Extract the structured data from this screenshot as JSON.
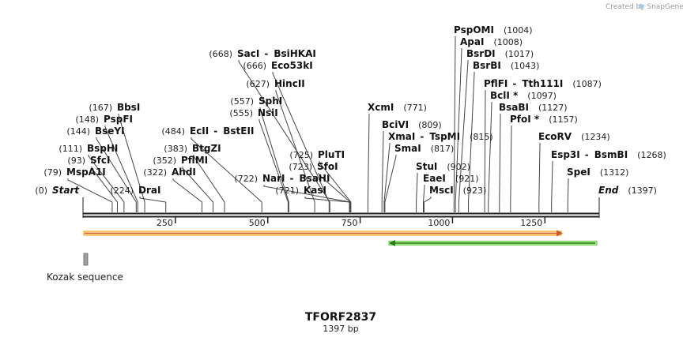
{
  "credit": "Created by SnapGene",
  "title": "TFORF2837",
  "subtitle": "1397 bp",
  "length": 1397,
  "colors": {
    "orf": "#f5a623",
    "orf_fill": "#ffe6b3",
    "arrow_line": "#cc5a2e",
    "green": "#a5e88a",
    "green_line": "#2a7a1a",
    "kozak": "#a0a0a0"
  },
  "ticks": [
    {
      "value": 250,
      "label": "250"
    },
    {
      "value": 500,
      "label": "500"
    },
    {
      "value": 750,
      "label": "750"
    },
    {
      "value": 1000,
      "label": "1000"
    },
    {
      "value": 1250,
      "label": "1250"
    }
  ],
  "features": [
    {
      "name": "orf",
      "start": 0,
      "end": 1397,
      "direction": "forward",
      "color": "#ffe6b3",
      "label": ""
    },
    {
      "name": "green-feature",
      "start": 840,
      "end": 1397,
      "direction": "reverse",
      "color": "#a5e88a",
      "label": ""
    },
    {
      "name": "kozak",
      "start": 0,
      "end": 10,
      "label": "Kozak sequence"
    }
  ],
  "sites": [
    {
      "id": "start",
      "pos": "(0)",
      "name": "Start",
      "italic": true,
      "loc": 0
    },
    {
      "id": "mspa1i",
      "pos": "(79)",
      "name": "MspA1I",
      "loc": 79
    },
    {
      "id": "sfci",
      "pos": "(93)",
      "name": "SfcI",
      "loc": 93
    },
    {
      "id": "bsphi",
      "pos": "(111)",
      "name": "BspHI",
      "loc": 111
    },
    {
      "id": "bseyi",
      "pos": "(144)",
      "name": "BseYI",
      "loc": 144
    },
    {
      "id": "pspfi",
      "pos": "(148)",
      "name": "PspFI",
      "loc": 148
    },
    {
      "id": "bbsi",
      "pos": "(167)",
      "name": "BbsI",
      "loc": 167
    },
    {
      "id": "drai",
      "pos": "(224)",
      "name": "DraI",
      "loc": 224,
      "label_right": true
    },
    {
      "id": "ahdi",
      "pos": "(322)",
      "name": "AhdI",
      "loc": 322
    },
    {
      "id": "pflmi",
      "pos": "(352)",
      "name": "PflMI",
      "loc": 352
    },
    {
      "id": "btgzi",
      "pos": "(383)",
      "name": "BtgZI",
      "loc": 383
    },
    {
      "id": "ecli",
      "pos": "(484)",
      "name": "EcII",
      "name2": "BstEII",
      "loc": 484
    },
    {
      "id": "nsii",
      "pos": "(555)",
      "name": "NsiI",
      "loc": 555
    },
    {
      "id": "sphi",
      "pos": "(557)",
      "name": "SphI",
      "loc": 557
    },
    {
      "id": "hincii",
      "pos": "(627)",
      "name": "HincII",
      "loc": 627
    },
    {
      "id": "eco53ki",
      "pos": "(666)",
      "name": "Eco53kI",
      "loc": 666
    },
    {
      "id": "saci",
      "pos": "(668)",
      "name": "SacI",
      "name2": "BsiHKAI",
      "loc": 668
    },
    {
      "id": "kasi",
      "pos": "(721)",
      "name": "KasI",
      "loc": 721
    },
    {
      "id": "nari",
      "pos": "(722)",
      "name": "NarI",
      "name2": "BsaHI",
      "loc": 722
    },
    {
      "id": "sfoi",
      "pos": "(723)",
      "name": "SfoI",
      "loc": 723
    },
    {
      "id": "pluti",
      "pos": "(725)",
      "name": "PluTI",
      "loc": 725
    },
    {
      "id": "xcmi",
      "pos": "(771)",
      "name": "XcmI",
      "loc": 771
    },
    {
      "id": "bcivi",
      "pos": "(809)",
      "name": "BciVI",
      "loc": 809
    },
    {
      "id": "xmai",
      "pos": "(815)",
      "name": "XmaI",
      "name2": "TspMI",
      "loc": 815
    },
    {
      "id": "smai",
      "pos": "(817)",
      "name": "SmaI",
      "loc": 817
    },
    {
      "id": "stui",
      "pos": "(902)",
      "name": "StuI",
      "loc": 902
    },
    {
      "id": "eaei",
      "pos": "(921)",
      "name": "EaeI",
      "loc": 921
    },
    {
      "id": "msci",
      "pos": "(923)",
      "name": "MscI",
      "loc": 923
    },
    {
      "id": "pspomi",
      "pos": "(1004)",
      "name": "PspOMI",
      "loc": 1004
    },
    {
      "id": "apai",
      "pos": "(1008)",
      "name": "ApaI",
      "loc": 1008
    },
    {
      "id": "bsrdi",
      "pos": "(1017)",
      "name": "BsrDI",
      "loc": 1017
    },
    {
      "id": "bsrbi",
      "pos": "(1043)",
      "name": "BsrBI",
      "loc": 1043
    },
    {
      "id": "pflfi",
      "pos": "(1087)",
      "name": "PflFI",
      "name2": "Tth111I",
      "loc": 1087
    },
    {
      "id": "bcli",
      "pos": "(1097)",
      "name": "BclI *",
      "loc": 1097
    },
    {
      "id": "bsabi",
      "pos": "(1127)",
      "name": "BsaBI",
      "loc": 1127
    },
    {
      "id": "pfoi",
      "pos": "(1157)",
      "name": "PfoI *",
      "loc": 1157
    },
    {
      "id": "ecorv",
      "pos": "(1234)",
      "name": "EcoRV",
      "loc": 1234
    },
    {
      "id": "esp3i",
      "pos": "(1268)",
      "name": "Esp3I",
      "name2": "BsmBI",
      "loc": 1268
    },
    {
      "id": "spei",
      "pos": "(1312)",
      "name": "SpeI",
      "loc": 1312
    },
    {
      "id": "end",
      "pos": "(1397)",
      "name": "End",
      "italic": true,
      "loc": 1397
    }
  ]
}
